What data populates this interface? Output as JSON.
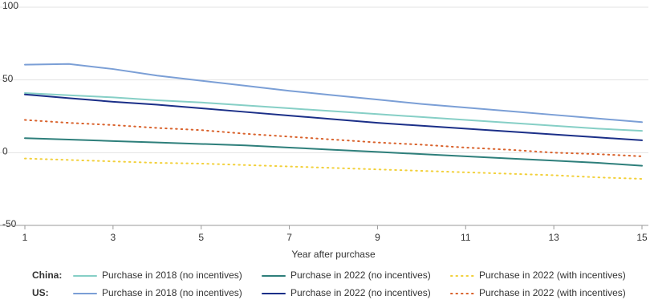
{
  "chart_data": {
    "type": "line",
    "x_label": "Year after purchase",
    "x": [
      1,
      2,
      3,
      4,
      5,
      6,
      7,
      8,
      9,
      10,
      11,
      12,
      13,
      14,
      15
    ],
    "xlim": [
      1,
      15
    ],
    "xticks": [
      1,
      3,
      5,
      7,
      9,
      11,
      13,
      15
    ],
    "ylim": [
      -50,
      100
    ],
    "yticks": [
      -50,
      0,
      50,
      100
    ],
    "grid": true,
    "series": [
      {
        "group": "China:",
        "name": "Purchase in 2018 (no incentives)",
        "color": "#86cfc6",
        "dash": "solid",
        "values": [
          41,
          39.5,
          38,
          36,
          34.5,
          32.5,
          30.5,
          28.5,
          26.5,
          24.5,
          22.5,
          20.5,
          18.5,
          16.5,
          15
        ]
      },
      {
        "group": "China:",
        "name": "Purchase in 2022 (no incentives)",
        "color": "#2e7f7b",
        "dash": "solid",
        "values": [
          10,
          9,
          8,
          7,
          6,
          5,
          3.5,
          2,
          0.5,
          -1,
          -2.5,
          -4,
          -5.5,
          -7,
          -9
        ]
      },
      {
        "group": "China:",
        "name": "Purchase in 2022 (with incentives)",
        "color": "#f2d03b",
        "dash": "dotted",
        "values": [
          -4,
          -5,
          -6,
          -7,
          -7.5,
          -8.5,
          -9.5,
          -10.5,
          -11.5,
          -12.5,
          -13.5,
          -14.5,
          -15.5,
          -17,
          -18
        ]
      },
      {
        "group": "US:",
        "name": "Purchase in 2018 (no incentives)",
        "color": "#7b9fd6",
        "dash": "solid",
        "values": [
          60.5,
          61,
          57.5,
          53,
          49.5,
          46,
          42.5,
          39.5,
          36.5,
          33.5,
          31,
          28.5,
          26,
          23.5,
          21
        ]
      },
      {
        "group": "US:",
        "name": "Purchase in 2022 (no incentives)",
        "color": "#1b2f88",
        "dash": "solid",
        "values": [
          40,
          37.5,
          35,
          33,
          30.5,
          28,
          25.5,
          23,
          20.5,
          18.5,
          16.5,
          14.5,
          12.5,
          10.5,
          8.5
        ]
      },
      {
        "group": "US:",
        "name": "Purchase in 2022 (with incentives)",
        "color": "#d9622c",
        "dash": "dotted",
        "values": [
          22.5,
          20.5,
          19,
          17,
          15.5,
          13,
          11,
          9,
          7,
          5.5,
          3.5,
          2,
          0,
          -1,
          -2.5
        ]
      }
    ]
  }
}
